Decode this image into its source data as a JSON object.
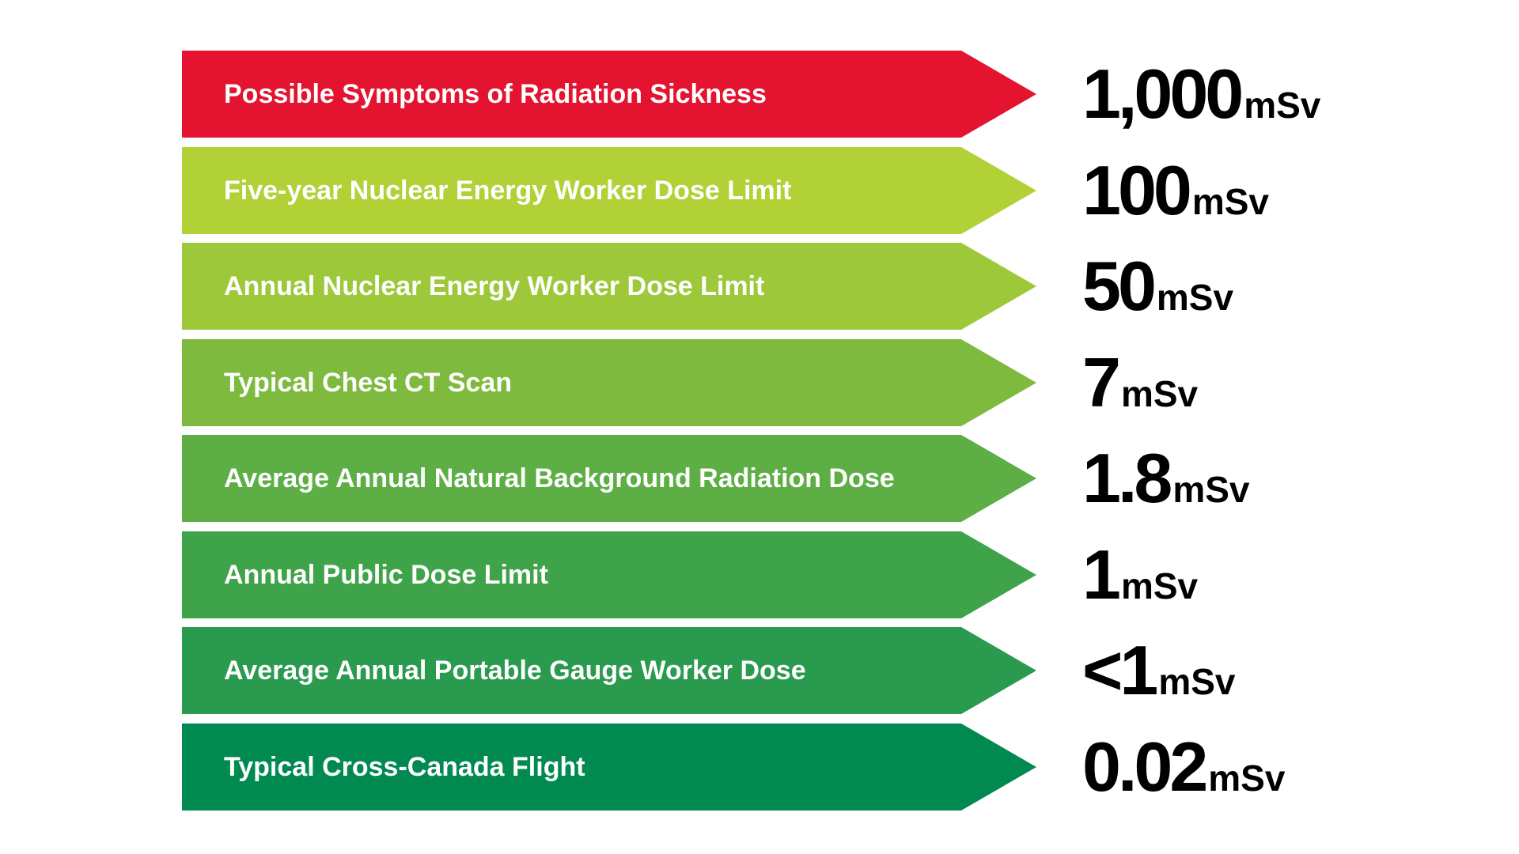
{
  "chart_data": {
    "type": "bar",
    "unit": "mSv",
    "items": [
      {
        "label": "Possible Symptoms of Radiation Sickness",
        "value_text": "1,000",
        "value": 1000,
        "color": "#E4132F"
      },
      {
        "label": "Five-year Nuclear Energy Worker Dose Limit",
        "value_text": "100",
        "value": 100,
        "color": "#B1D136"
      },
      {
        "label": "Annual Nuclear Energy Worker Dose Limit",
        "value_text": "50",
        "value": 50,
        "color": "#9CC83A"
      },
      {
        "label": "Typical Chest CT Scan",
        "value_text": "7",
        "value": 7,
        "color": "#7DBA3E"
      },
      {
        "label": "Average Annual Natural Background Radiation Dose",
        "value_text": "1.8",
        "value": 1.8,
        "color": "#5CAE45"
      },
      {
        "label": "Annual Public Dose Limit",
        "value_text": "1",
        "value": 1,
        "color": "#3FA349"
      },
      {
        "label": "Average Annual Portable Gauge Worker Dose",
        "value_text": "<1",
        "value": 1,
        "color": "#2A9A4E"
      },
      {
        "label": "Typical Cross-Canada Flight",
        "value_text": "0.02",
        "value": 0.02,
        "color": "#008A50"
      }
    ]
  }
}
